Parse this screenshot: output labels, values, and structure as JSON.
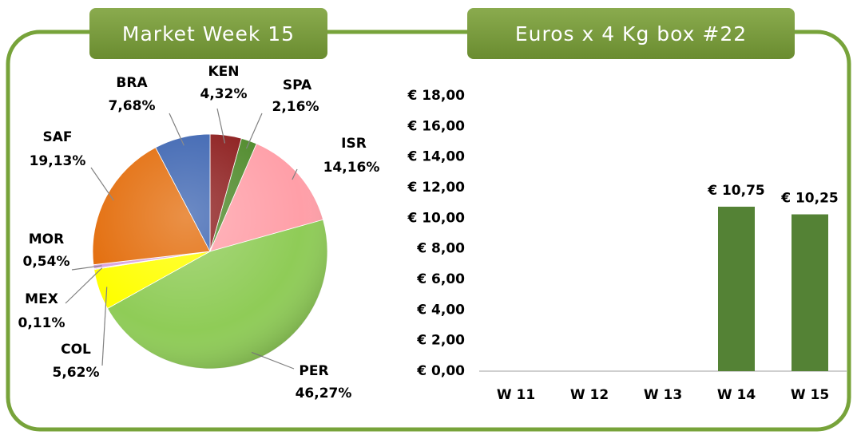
{
  "chart_data": [
    {
      "type": "pie",
      "title": "Market Week 15",
      "categories": [
        "KEN",
        "SPA",
        "ISR",
        "PER",
        "COL",
        "MEX",
        "MOR",
        "SAF",
        "BRA"
      ],
      "values": [
        4.32,
        2.16,
        14.16,
        46.27,
        5.62,
        0.11,
        0.54,
        19.13,
        7.68
      ],
      "value_labels": [
        "4,32%",
        "2,16%",
        "14,16%",
        "46,27%",
        "5,62%",
        "0,11%",
        "0,54%",
        "19,13%",
        "7,68%"
      ],
      "colors": [
        "#8c1c1c",
        "#4f8a2b",
        "#ff9fa8",
        "#8fcc57",
        "#ffff00",
        "#9bbb59",
        "#d8a2e0",
        "#e36c0a",
        "#3c64b1"
      ]
    },
    {
      "type": "bar",
      "title": "Euros x 4 Kg box #22",
      "categories": [
        "W 11",
        "W 12",
        "W 13",
        "W 14",
        "W 15"
      ],
      "values": [
        null,
        null,
        null,
        10.75,
        10.25
      ],
      "value_labels": [
        null,
        null,
        null,
        "€ 10,75",
        "€ 10,25"
      ],
      "color": "#548235",
      "ylim": [
        0,
        18
      ],
      "yticks": [
        {
          "value": 0,
          "label": "€ 0,00"
        },
        {
          "value": 2,
          "label": "€ 2,00"
        },
        {
          "value": 4,
          "label": "€ 4,00"
        },
        {
          "value": 6,
          "label": "€ 6,00"
        },
        {
          "value": 8,
          "label": "€ 8,00"
        },
        {
          "value": 10,
          "label": "€ 10,00"
        },
        {
          "value": 12,
          "label": "€ 12,00"
        },
        {
          "value": 14,
          "label": "€ 14,00"
        },
        {
          "value": 16,
          "label": "€ 16,00"
        },
        {
          "value": 18,
          "label": "€ 18,00"
        }
      ],
      "grid": false
    }
  ]
}
